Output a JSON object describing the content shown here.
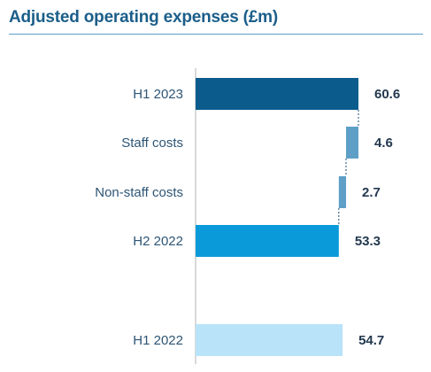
{
  "chart_data": {
    "type": "bar",
    "variant": "waterfall",
    "orientation": "horizontal",
    "title": "Adjusted operating expenses (£m)",
    "categories": [
      "H1 2023",
      "Staff costs",
      "Non-staff costs",
      "H2 2022",
      "H1 2022"
    ],
    "values": [
      60.6,
      4.6,
      2.7,
      53.3,
      54.7
    ],
    "value_labels": [
      "60.6",
      "4.6",
      "2.7",
      "53.3",
      "54.7"
    ],
    "bar_kind": [
      "total",
      "increment",
      "increment",
      "total",
      "total"
    ],
    "colors": [
      "#0b5c8c",
      "#5d9fc6",
      "#5d9fc6",
      "#0a9ad9",
      "#b8e3f8"
    ],
    "connector_color": "#1f4f72",
    "axis_color": "#b3b3b3",
    "xlim": [
      0,
      60.6
    ],
    "grid": false,
    "legend": "none"
  }
}
